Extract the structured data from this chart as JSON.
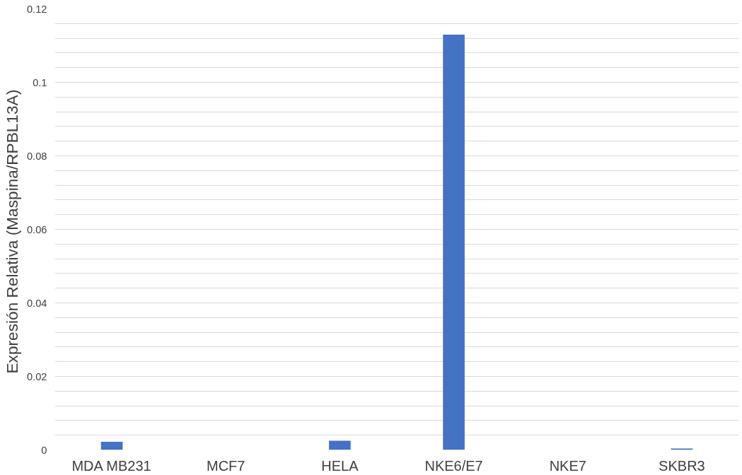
{
  "chart_data": {
    "type": "bar",
    "ylabel": "Expresión  Relativa (Maspina/RPBL13A)",
    "categories": [
      "MDA MB231",
      "MCF7",
      "HELA",
      "NKE6/E7",
      "NKE7",
      "SKBR3"
    ],
    "values": [
      0.0022,
      0,
      0.0025,
      0.113,
      0,
      0.0004
    ],
    "color": "#4472c4",
    "ylim": [
      0,
      0.12
    ],
    "yticks": [
      0,
      {
        "value": 0.004,
        "label": null
      },
      {
        "value": 0.008,
        "label": null
      },
      {
        "value": 0.012,
        "label": null
      },
      {
        "value": 0.016,
        "label": null
      },
      0.02,
      {
        "value": 0.024,
        "label": null
      },
      {
        "value": 0.028,
        "label": null
      },
      {
        "value": 0.032,
        "label": null
      },
      {
        "value": 0.036,
        "label": null
      },
      0.04,
      {
        "value": 0.044,
        "label": null
      },
      {
        "value": 0.048,
        "label": null
      },
      {
        "value": 0.052,
        "label": null
      },
      {
        "value": 0.056,
        "label": null
      },
      0.06,
      {
        "value": 0.064,
        "label": null
      },
      {
        "value": 0.068,
        "label": null
      },
      {
        "value": 0.072,
        "label": null
      },
      {
        "value": 0.076,
        "label": null
      },
      0.08,
      {
        "value": 0.084,
        "label": null
      },
      {
        "value": 0.088,
        "label": null
      },
      {
        "value": 0.092,
        "label": null
      },
      {
        "value": 0.096,
        "label": null
      },
      0.1,
      {
        "value": 0.104,
        "label": null
      },
      {
        "value": 0.108,
        "label": null
      },
      {
        "value": 0.112,
        "label": null
      },
      {
        "value": 0.116,
        "label": null
      },
      0.12
    ],
    "grid": "y"
  }
}
